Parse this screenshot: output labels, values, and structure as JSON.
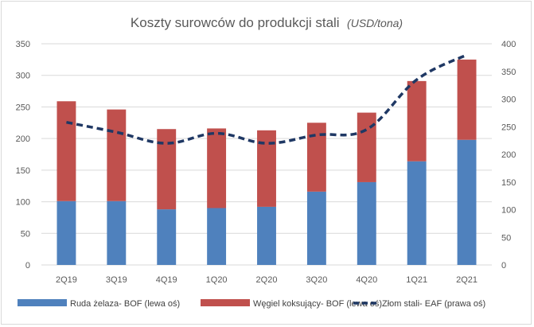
{
  "chart_data": {
    "type": "bar",
    "title": "Koszty surowców do produkcji stali",
    "title_unit": "(USD/tona)",
    "categories": [
      "2Q19",
      "3Q19",
      "4Q19",
      "1Q20",
      "2Q20",
      "3Q20",
      "4Q20",
      "1Q21",
      "2Q21"
    ],
    "series": [
      {
        "name": "Ruda żelaza- BOF (lewa oś)",
        "kind": "stacked-bar",
        "axis": "left",
        "color": "#4f81bd",
        "values": [
          101,
          101,
          88,
          90,
          92,
          116,
          131,
          164,
          198
        ]
      },
      {
        "name": "Węgiel koksujący- BOF (lewa oś)",
        "kind": "stacked-bar",
        "axis": "left",
        "color": "#c0504d",
        "values": [
          158,
          145,
          127,
          126,
          121,
          109,
          110,
          127,
          127
        ]
      },
      {
        "name": "Złom stali- EAF (prawa oś)",
        "kind": "line",
        "axis": "right",
        "style": "dashed",
        "color": "#1f3864",
        "values": [
          258,
          240,
          220,
          238,
          220,
          235,
          245,
          335,
          380
        ]
      }
    ],
    "y_left": {
      "min": 0,
      "max": 350,
      "step": 50
    },
    "y_right": {
      "min": 0,
      "max": 400,
      "step": 50
    },
    "grid": true,
    "legend_position": "bottom"
  }
}
